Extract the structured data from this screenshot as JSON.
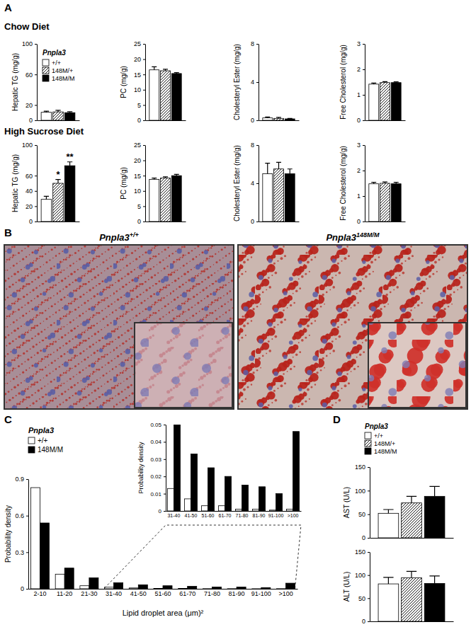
{
  "chart_data": [
    {
      "type": "bar",
      "ylabel": "Hepatic TG (mg/g)",
      "ylim": [
        0,
        100
      ],
      "yticks": [
        0,
        20,
        60,
        100
      ],
      "tick_labels": "y",
      "legend": "top-left",
      "annotations": [
        {
          "text": "A"
        },
        {
          "text": "Chow Diet"
        },
        {
          "text": "Pnpla3"
        }
      ],
      "series": [
        {
          "name": "+/+",
          "color": "#ffffff",
          "values": [
            10.5
          ],
          "errors": [
            1.5
          ]
        },
        {
          "name": "148M/+",
          "color": "#ffffff",
          "line_style": "hatched",
          "values": [
            11
          ],
          "errors": [
            2
          ]
        },
        {
          "name": "148M/M",
          "color": "#000000",
          "values": [
            10
          ],
          "errors": [
            1.2
          ]
        }
      ]
    },
    {
      "type": "bar",
      "ylabel": "PC (mg/g)",
      "ylim": [
        0,
        25
      ],
      "yticks": [
        0,
        5,
        10,
        15,
        20,
        25
      ],
      "tick_labels": "y",
      "series": [
        {
          "name": "+/+",
          "color": "#ffffff",
          "values": [
            16.5
          ],
          "errors": [
            1
          ]
        },
        {
          "name": "148M/+",
          "color": "#ffffff",
          "line_style": "hatched",
          "values": [
            16.2
          ],
          "errors": [
            0.5
          ]
        },
        {
          "name": "148M/M",
          "color": "#000000",
          "values": [
            15.3
          ],
          "errors": [
            0.3
          ]
        }
      ]
    },
    {
      "type": "bar",
      "ylabel": "Cholesteryl Ester (mg/g)",
      "ylim": [
        0,
        8
      ],
      "yticks": [
        0,
        4,
        8
      ],
      "tick_labels": "y",
      "series": [
        {
          "name": "+/+",
          "color": "#ffffff",
          "values": [
            0.25
          ],
          "errors": [
            0.1
          ]
        },
        {
          "name": "148M/+",
          "color": "#ffffff",
          "line_style": "hatched",
          "values": [
            0.2
          ],
          "errors": [
            0.1
          ]
        },
        {
          "name": "148M/M",
          "color": "#000000",
          "values": [
            0.15
          ],
          "errors": [
            0.05
          ]
        }
      ]
    },
    {
      "type": "bar",
      "ylabel": "Free Cholesterol (mg/g)",
      "ylim": [
        0,
        3
      ],
      "yticks": [
        0,
        1,
        2,
        3
      ],
      "tick_labels": "y",
      "series": [
        {
          "name": "+/+",
          "color": "#ffffff",
          "values": [
            1.42
          ],
          "errors": [
            0.04
          ]
        },
        {
          "name": "148M/+",
          "color": "#ffffff",
          "line_style": "hatched",
          "values": [
            1.48
          ],
          "errors": [
            0.04
          ]
        },
        {
          "name": "148M/M",
          "color": "#000000",
          "values": [
            1.48
          ],
          "errors": [
            0.03
          ]
        }
      ]
    },
    {
      "type": "bar",
      "ylabel": "Hepatic TG (mg/g)",
      "ylim": [
        0,
        100
      ],
      "yticks": [
        0,
        20,
        40,
        60,
        100
      ],
      "tick_labels": "y",
      "annotations": [
        {
          "text": "High Sucrose Diet"
        },
        {
          "text": "*",
          "series": "148M/+"
        },
        {
          "text": "**",
          "series": "148M/M"
        }
      ],
      "series": [
        {
          "name": "+/+",
          "color": "#ffffff",
          "values": [
            29
          ],
          "errors": [
            4
          ]
        },
        {
          "name": "148M/+",
          "color": "#ffffff",
          "line_style": "hatched",
          "values": [
            50
          ],
          "errors": [
            5
          ]
        },
        {
          "name": "148M/M",
          "color": "#000000",
          "values": [
            73
          ],
          "errors": [
            5
          ]
        }
      ]
    },
    {
      "type": "bar",
      "ylabel": "PC (mg/g)",
      "ylim": [
        0,
        25
      ],
      "yticks": [
        0,
        5,
        10,
        15,
        20,
        25
      ],
      "tick_labels": "y",
      "series": [
        {
          "name": "+/+",
          "color": "#ffffff",
          "values": [
            13.8
          ],
          "errors": [
            0.4
          ]
        },
        {
          "name": "148M/+",
          "color": "#ffffff",
          "line_style": "hatched",
          "values": [
            14.2
          ],
          "errors": [
            0.4
          ]
        },
        {
          "name": "148M/M",
          "color": "#000000",
          "values": [
            15
          ],
          "errors": [
            0.4
          ]
        }
      ]
    },
    {
      "type": "bar",
      "ylabel": "Cholesteryl Ester (mg/g)",
      "ylim": [
        0,
        8
      ],
      "yticks": [
        0,
        4,
        8
      ],
      "tick_labels": "y",
      "series": [
        {
          "name": "+/+",
          "color": "#ffffff",
          "values": [
            5
          ],
          "errors": [
            1.1
          ]
        },
        {
          "name": "148M/+",
          "color": "#ffffff",
          "line_style": "hatched",
          "values": [
            5.5
          ],
          "errors": [
            0.7
          ]
        },
        {
          "name": "148M/M",
          "color": "#000000",
          "values": [
            5
          ],
          "errors": [
            0.5
          ]
        }
      ]
    },
    {
      "type": "bar",
      "ylabel": "Free Cholesterol (mg/g)",
      "ylim": [
        0,
        3
      ],
      "yticks": [
        0,
        1,
        2,
        3
      ],
      "tick_labels": "y",
      "series": [
        {
          "name": "+/+",
          "color": "#ffffff",
          "values": [
            1.48
          ],
          "errors": [
            0.06
          ]
        },
        {
          "name": "148M/+",
          "color": "#ffffff",
          "line_style": "hatched",
          "values": [
            1.5
          ],
          "errors": [
            0.05
          ]
        },
        {
          "name": "148M/M",
          "color": "#000000",
          "values": [
            1.48
          ],
          "errors": [
            0.06
          ]
        }
      ]
    },
    {
      "type": "image",
      "annotations": [
        {
          "text": "B"
        }
      ],
      "images": [
        {
          "label": "Pnpla3",
          "superscript": "+/+"
        },
        {
          "label": "Pnpla3",
          "superscript": "148M/M"
        }
      ]
    },
    {
      "type": "bar",
      "xlabel": "Lipid droplet area (μm)²",
      "ylabel": "Probability density",
      "categories": [
        "2-10",
        "11-20",
        "21-30",
        "31-40",
        "41-50",
        "51-60",
        "61-70",
        "71-80",
        "81-90",
        "91-100",
        ">100"
      ],
      "ylim": [
        0,
        0.9
      ],
      "yticks": [
        0,
        0.3,
        0.6,
        0.9
      ],
      "legend": "top-left",
      "annotations": [
        {
          "text": "C"
        },
        {
          "text": "Pnpla3"
        }
      ],
      "series": [
        {
          "name": "+/+",
          "color": "#ffffff",
          "values": [
            0.83,
            0.12,
            0.025,
            0.013,
            0.007,
            0.003,
            0.003,
            0.001,
            0.001,
            0.0005,
            0.001
          ]
        },
        {
          "name": "148M/M",
          "color": "#000000",
          "values": [
            0.54,
            0.17,
            0.09,
            0.05,
            0.033,
            0.025,
            0.02,
            0.015,
            0.014,
            0.01,
            0.046
          ]
        }
      ]
    },
    {
      "type": "bar",
      "ylabel": "Probability density",
      "categories": [
        "31-40",
        "41-50",
        "51-60",
        "61-70",
        "71-80",
        "81-90",
        "91-100",
        ">100"
      ],
      "ylim": [
        0,
        0.05
      ],
      "yticks": [
        0,
        0.01,
        0.02,
        0.03,
        0.04,
        0.05
      ],
      "series": [
        {
          "name": "+/+",
          "color": "#ffffff",
          "values": [
            0.013,
            0.007,
            0.003,
            0.003,
            0.001,
            0.001,
            0.0005,
            0.001
          ]
        },
        {
          "name": "148M/M",
          "color": "#000000",
          "values": [
            0.05,
            0.033,
            0.025,
            0.02,
            0.015,
            0.014,
            0.01,
            0.046
          ]
        }
      ]
    },
    {
      "type": "bar",
      "ylabel": "AST (U/L)",
      "ylim": [
        0,
        150
      ],
      "yticks": [
        0,
        50,
        100,
        150
      ],
      "tick_labels": "y",
      "legend": "top-left",
      "annotations": [
        {
          "text": "D"
        },
        {
          "text": "Pnpla3"
        }
      ],
      "series": [
        {
          "name": "+/+",
          "color": "#ffffff",
          "values": [
            52
          ],
          "errors": [
            8
          ]
        },
        {
          "name": "148M/+",
          "color": "#ffffff",
          "line_style": "hatched",
          "values": [
            74
          ],
          "errors": [
            14
          ]
        },
        {
          "name": "148M/M",
          "color": "#000000",
          "values": [
            88
          ],
          "errors": [
            21
          ]
        }
      ]
    },
    {
      "type": "bar",
      "ylabel": "ALT (U/L)",
      "ylim": [
        0,
        150
      ],
      "yticks": [
        0,
        50,
        100,
        150
      ],
      "tick_labels": "y",
      "series": [
        {
          "name": "+/+",
          "color": "#ffffff",
          "values": [
            81
          ],
          "errors": [
            14
          ]
        },
        {
          "name": "148M/+",
          "color": "#ffffff",
          "line_style": "hatched",
          "values": [
            94
          ],
          "errors": [
            14
          ]
        },
        {
          "name": "148M/M",
          "color": "#000000",
          "values": [
            82
          ],
          "errors": [
            16
          ]
        }
      ]
    }
  ]
}
